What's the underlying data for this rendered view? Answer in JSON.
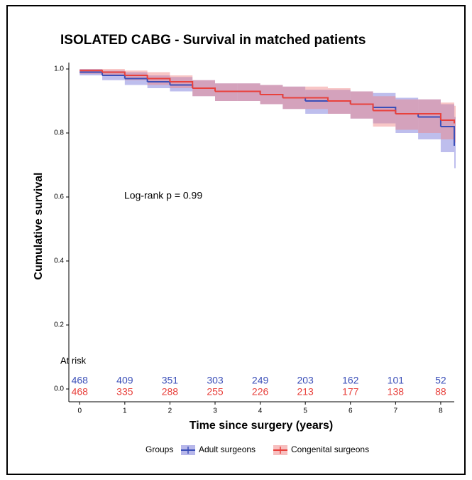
{
  "chart_data": {
    "type": "km",
    "title": "ISOLATED CABG - Survival in matched patients",
    "x_label": "Time since surgery (years)",
    "y_label": "Cumulative survival",
    "annotation": "Log-rank  p = 0.99",
    "legend_title": "Groups",
    "xlim": [
      -0.24,
      8.3
    ],
    "ylim": [
      -0.04,
      1.02
    ],
    "xticks": [
      0,
      1,
      2,
      3,
      4,
      5,
      6,
      7,
      8
    ],
    "yticks": [
      {
        "value": 0,
        "label": "0.0"
      },
      0.2,
      0.4,
      0.6,
      0.8,
      {
        "value": 1,
        "label": "1.0"
      }
    ],
    "x": [
      0,
      0.5,
      1,
      1.5,
      2,
      2.5,
      3,
      3.5,
      4,
      4.5,
      5,
      5.5,
      6,
      6.5,
      7,
      7.5,
      8,
      8.3
    ],
    "series": [
      {
        "name": "Adult surgeons",
        "color": "#3b4fb8",
        "band_color": "#6f6fd6",
        "values": [
          0.99,
          0.98,
          0.97,
          0.96,
          0.95,
          0.94,
          0.93,
          0.93,
          0.92,
          0.91,
          0.9,
          0.9,
          0.89,
          0.88,
          0.86,
          0.85,
          0.82,
          0.76
        ],
        "lower": [
          0.98,
          0.965,
          0.95,
          0.94,
          0.93,
          0.915,
          0.9,
          0.9,
          0.89,
          0.875,
          0.86,
          0.86,
          0.845,
          0.83,
          0.8,
          0.78,
          0.74,
          0.69
        ],
        "upper": [
          1.0,
          0.995,
          0.99,
          0.98,
          0.975,
          0.965,
          0.955,
          0.955,
          0.95,
          0.945,
          0.935,
          0.935,
          0.93,
          0.925,
          0.91,
          0.905,
          0.89,
          0.85
        ],
        "at_risk": [
          468,
          409,
          351,
          303,
          249,
          203,
          162,
          101,
          52
        ]
      },
      {
        "name": "Congenital surgeons",
        "color": "#e8413c",
        "band_color": "#f08080",
        "values": [
          0.995,
          0.99,
          0.98,
          0.97,
          0.96,
          0.94,
          0.93,
          0.93,
          0.92,
          0.91,
          0.91,
          0.9,
          0.89,
          0.87,
          0.86,
          0.86,
          0.84,
          0.83
        ],
        "lower": [
          0.985,
          0.98,
          0.965,
          0.95,
          0.94,
          0.915,
          0.9,
          0.9,
          0.89,
          0.875,
          0.875,
          0.86,
          0.845,
          0.82,
          0.81,
          0.8,
          0.78,
          0.77
        ],
        "upper": [
          1.0,
          1.0,
          0.995,
          0.99,
          0.98,
          0.965,
          0.955,
          0.955,
          0.95,
          0.945,
          0.945,
          0.94,
          0.93,
          0.915,
          0.905,
          0.905,
          0.895,
          0.885
        ],
        "at_risk": [
          468,
          335,
          288,
          255,
          226,
          213,
          177,
          138,
          88
        ]
      }
    ],
    "risk_table_title": "At risk"
  }
}
